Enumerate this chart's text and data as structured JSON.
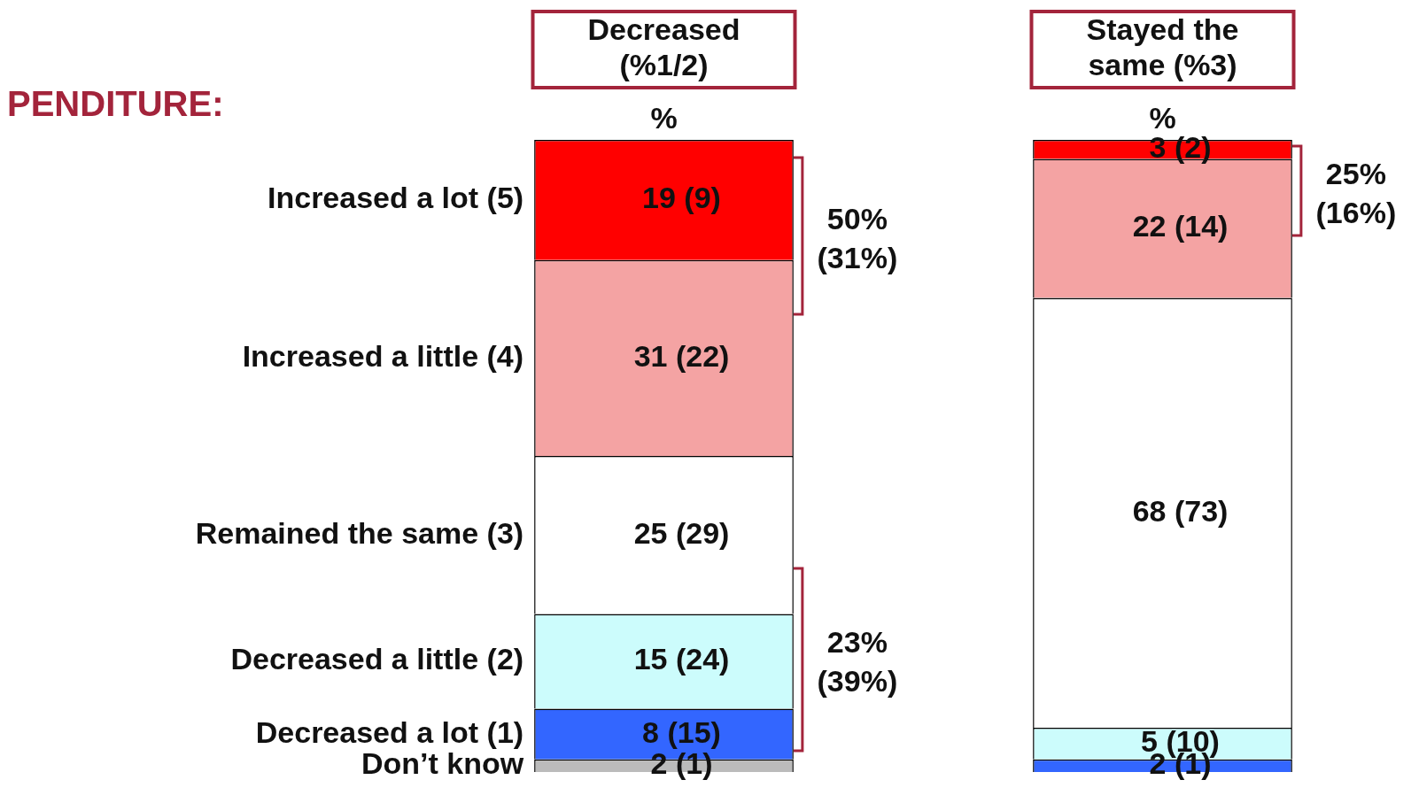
{
  "chart_data": {
    "type": "bar",
    "stacked": true,
    "title": "PENDITURE:",
    "categories": [
      "Decreased (%1/2)",
      "Stayed the same (%3)"
    ],
    "ylim": [
      0,
      100
    ],
    "tick_labels": "x",
    "legend": false,
    "grid": false,
    "series": [
      {
        "name": "Don’t know",
        "color": "#bbbbbb",
        "values": [
          2,
          0
        ],
        "value_labels": [
          "2 (1)",
          null
        ]
      },
      {
        "name": "Decreased a lot (1)",
        "color": "#3366ff",
        "values": [
          8,
          2
        ],
        "value_labels": [
          "8 (15)",
          "2 (1)"
        ]
      },
      {
        "name": "Decreased a little (2)",
        "color": "#ccfcfc",
        "values": [
          15,
          5
        ],
        "value_labels": [
          "15 (24)",
          "5 (10)"
        ]
      },
      {
        "name": "Remained the same (3)",
        "color": "#ffffff",
        "values": [
          25,
          68
        ],
        "value_labels": [
          "25 (29)",
          "68 (73)"
        ]
      },
      {
        "name": "Increased a little (4)",
        "color": "#f4a3a3",
        "values": [
          31,
          22
        ],
        "value_labels": [
          "31 (22)",
          "22 (14)"
        ]
      },
      {
        "name": "Increased a lot (5)",
        "color": "#ff0000",
        "values": [
          19,
          3
        ],
        "value_labels": [
          "19 (9)",
          "3 (2)"
        ]
      }
    ],
    "annotations": [
      {
        "text": "%",
        "x": "Decreased (%1/2)",
        "y": 100
      },
      {
        "text": "%",
        "x": "Stayed the same (%3)",
        "y": 100
      },
      "50% (31%)",
      "23% (39%)",
      "25% (16%)"
    ]
  }
}
